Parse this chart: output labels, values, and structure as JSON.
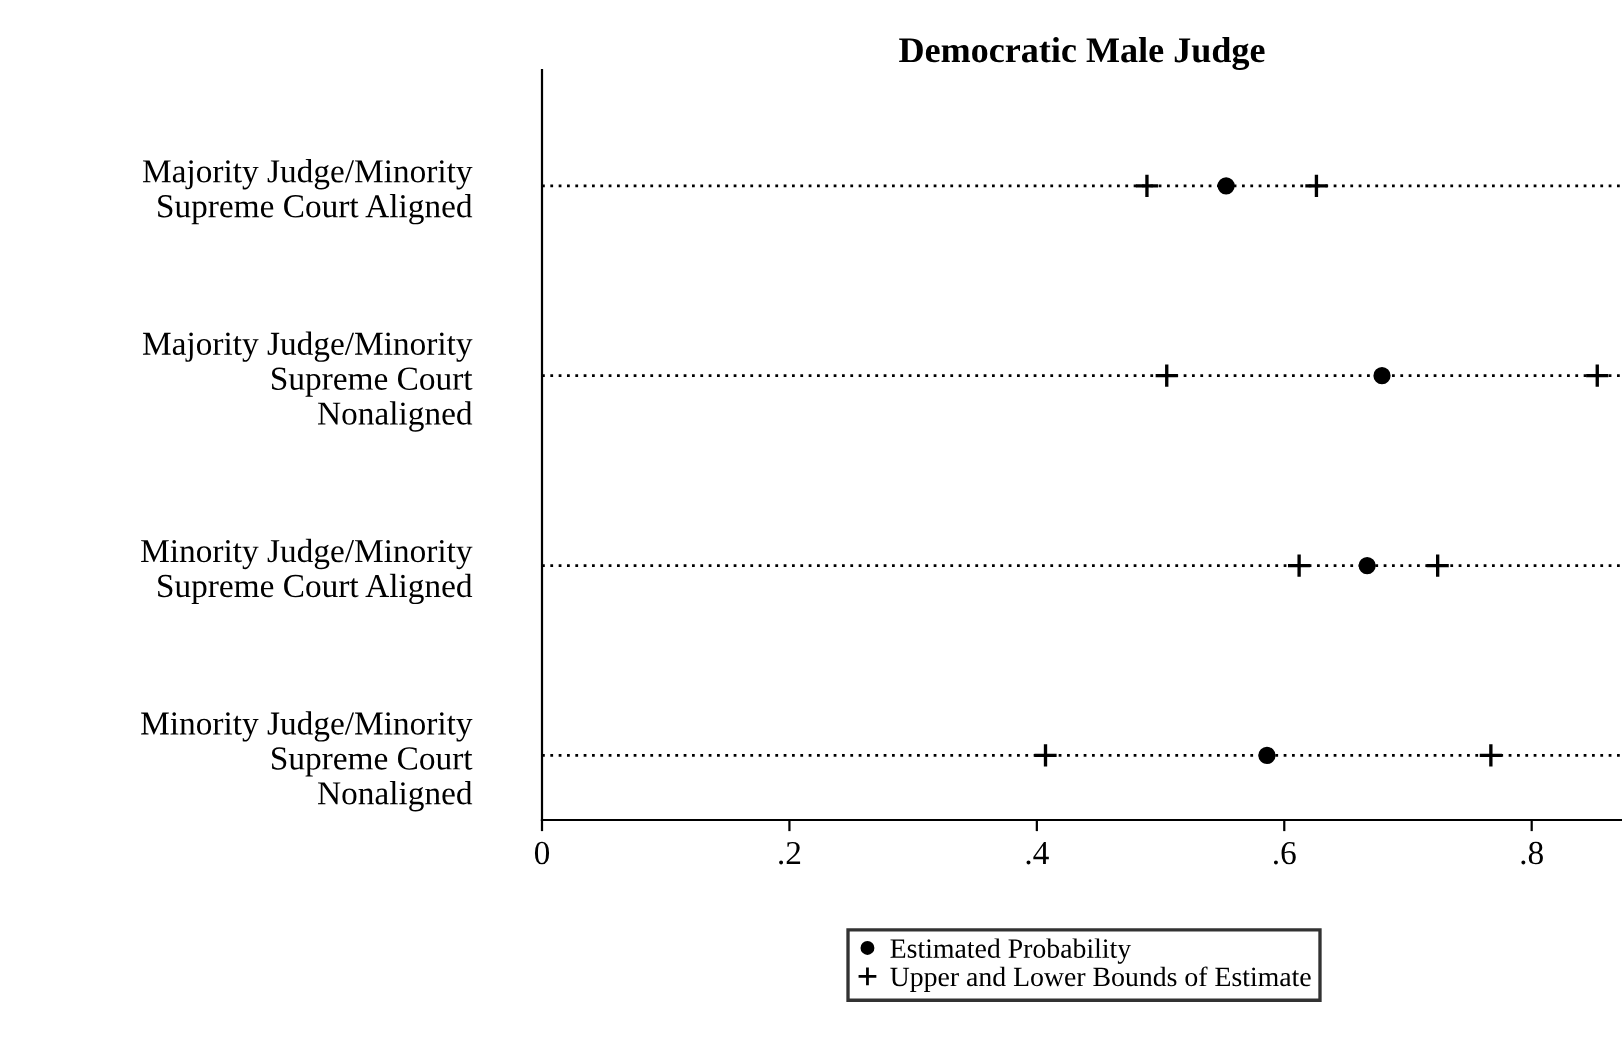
{
  "chart_data": {
    "type": "scatter",
    "orientation": "horizontal",
    "title": "Democratic Male Judge",
    "categories": [
      "Majority Judge/Minority\nSupreme Court Aligned",
      "Majority Judge/Minority\nSupreme Court\nNonaligned",
      "Minority Judge/Minority\nSupreme Court Aligned",
      "Minority Judge/Minority\nSupreme Court\nNonaligned"
    ],
    "series": [
      {
        "name": "Estimated Probability",
        "color": "#000000",
        "marker": "circle",
        "values": [
          0.553,
          0.679,
          0.667,
          0.586
        ]
      },
      {
        "name": "Upper and Lower Bounds of Estimate",
        "color": "#000000",
        "marker": "cross",
        "values": [
          0.489,
          0.505,
          0.612,
          0.407
        ]
      },
      {
        "color": "#000000",
        "marker": "cross",
        "values": [
          0.626,
          0.853,
          0.724,
          0.767
        ]
      }
    ],
    "xlim": [
      0,
      0.873
    ],
    "xticks": [
      {
        "value": 0,
        "label": "0"
      },
      {
        "value": 0.2,
        "label": ".2"
      },
      {
        "value": 0.4,
        "label": ".4"
      },
      {
        "value": 0.6,
        "label": ".6"
      },
      {
        "value": 0.8,
        "label": ".8"
      }
    ],
    "grid": "y",
    "legend": "bottom"
  }
}
